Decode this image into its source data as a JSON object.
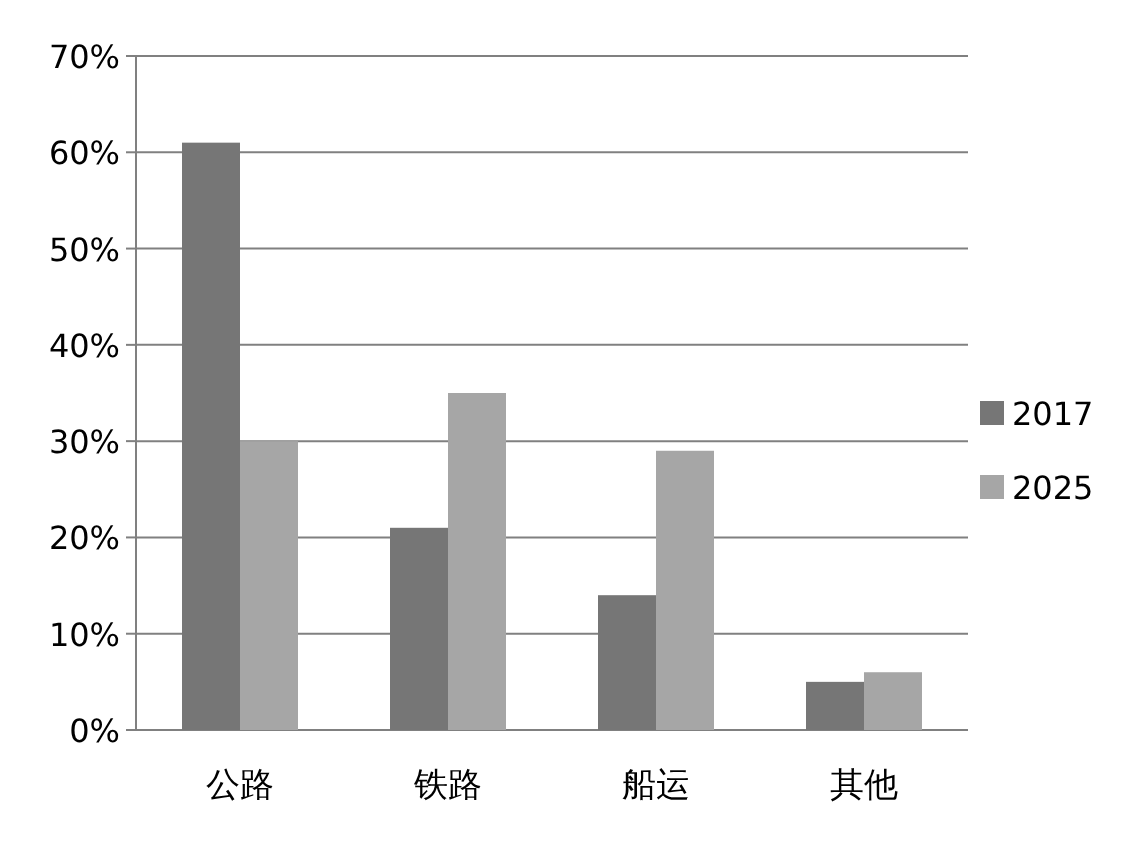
{
  "chart_data": {
    "type": "bar",
    "categories": [
      "公路",
      "铁路",
      "船运",
      "其他"
    ],
    "series": [
      {
        "name": "2017",
        "color": "#767676",
        "values": [
          61,
          21,
          14,
          5
        ]
      },
      {
        "name": "2025",
        "color": "#a6a6a6",
        "values": [
          30,
          35,
          29,
          6
        ]
      }
    ],
    "ylim": [
      0,
      70
    ],
    "yticks": [
      {
        "value": 0,
        "label": "0%"
      },
      {
        "value": 10,
        "label": "10%"
      },
      {
        "value": 20,
        "label": "20%"
      },
      {
        "value": 30,
        "label": "30%"
      },
      {
        "value": 40,
        "label": "40%"
      },
      {
        "value": 50,
        "label": "50%"
      },
      {
        "value": 60,
        "label": "60%"
      },
      {
        "value": 70,
        "label": "70%"
      }
    ],
    "grid": "y",
    "legend": "right"
  }
}
